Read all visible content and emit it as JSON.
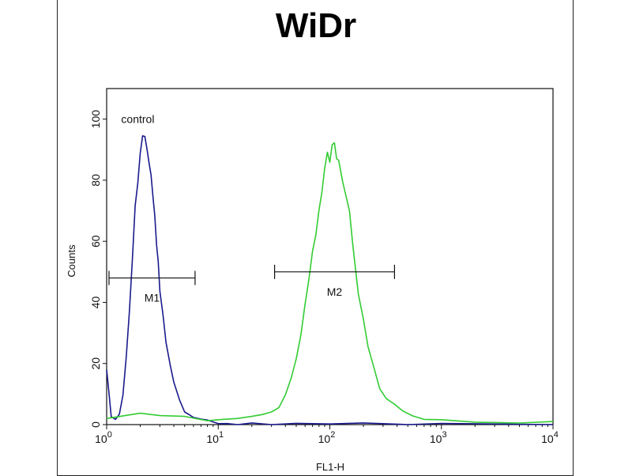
{
  "chart_data": {
    "type": "line",
    "title": "WiDr",
    "xlabel": "FL1-H",
    "ylabel": "Counts",
    "x_scale": "log",
    "xlim": [
      1,
      10000
    ],
    "ylim": [
      0,
      110
    ],
    "x_ticks": [
      {
        "value": 1,
        "base": "10",
        "exp": "0"
      },
      {
        "value": 10,
        "base": "10",
        "exp": "1"
      },
      {
        "value": 100,
        "base": "10",
        "exp": "2"
      },
      {
        "value": 1000,
        "base": "10",
        "exp": "3"
      },
      {
        "value": 10000,
        "base": "10",
        "exp": "4"
      }
    ],
    "y_ticks": [
      "0",
      "20",
      "40",
      "60",
      "80",
      "100"
    ],
    "grid": false,
    "annotations": [
      {
        "text": "control",
        "x": 1.35,
        "y": 100
      }
    ],
    "markers": [
      {
        "label": "M1",
        "x_start": 1.05,
        "x_end": 6.2,
        "y": 48
      },
      {
        "label": "M2",
        "x_start": 32,
        "x_end": 380,
        "y": 50
      }
    ],
    "series": [
      {
        "color": "#1a1a8c",
        "x": [
          1.0,
          1.05,
          1.1,
          1.2,
          1.3,
          1.4,
          1.5,
          1.6,
          1.7,
          1.8,
          1.9,
          2.0,
          2.1,
          2.2,
          2.3,
          2.4,
          2.5,
          2.6,
          2.7,
          2.8,
          2.9,
          3.0,
          3.2,
          3.4,
          3.7,
          4.0,
          4.5,
          5.0,
          5.5,
          6.0,
          7.0,
          8.0,
          10,
          12,
          15,
          20,
          30,
          50,
          100,
          200,
          500,
          1000,
          10000
        ],
        "y": [
          18,
          10,
          2,
          2,
          4,
          10,
          22,
          38,
          55,
          70,
          80,
          88,
          92,
          91,
          90,
          87,
          82,
          75,
          68,
          60,
          52,
          45,
          35,
          28,
          20,
          14,
          8,
          4,
          3,
          2,
          2,
          1,
          1,
          1,
          0,
          0,
          0,
          0,
          0,
          0,
          0,
          0,
          0
        ]
      },
      {
        "color": "#33cc33",
        "x": [
          1.0,
          1.5,
          2,
          3,
          5,
          8,
          10,
          15,
          20,
          25,
          30,
          35,
          40,
          45,
          50,
          55,
          60,
          65,
          70,
          75,
          80,
          85,
          90,
          95,
          100,
          105,
          110,
          115,
          120,
          130,
          140,
          150,
          160,
          170,
          180,
          200,
          220,
          250,
          280,
          320,
          380,
          450,
          550,
          700,
          1000,
          2000,
          5000,
          10000
        ],
        "y": [
          2,
          3,
          3,
          3,
          2,
          2,
          1,
          2,
          2,
          3,
          4,
          6,
          10,
          15,
          22,
          30,
          38,
          48,
          56,
          64,
          72,
          78,
          84,
          86,
          88,
          92,
          95,
          90,
          87,
          82,
          76,
          68,
          60,
          52,
          44,
          35,
          26,
          18,
          12,
          8,
          6,
          4,
          3,
          2,
          2,
          1,
          1,
          1
        ]
      }
    ]
  }
}
